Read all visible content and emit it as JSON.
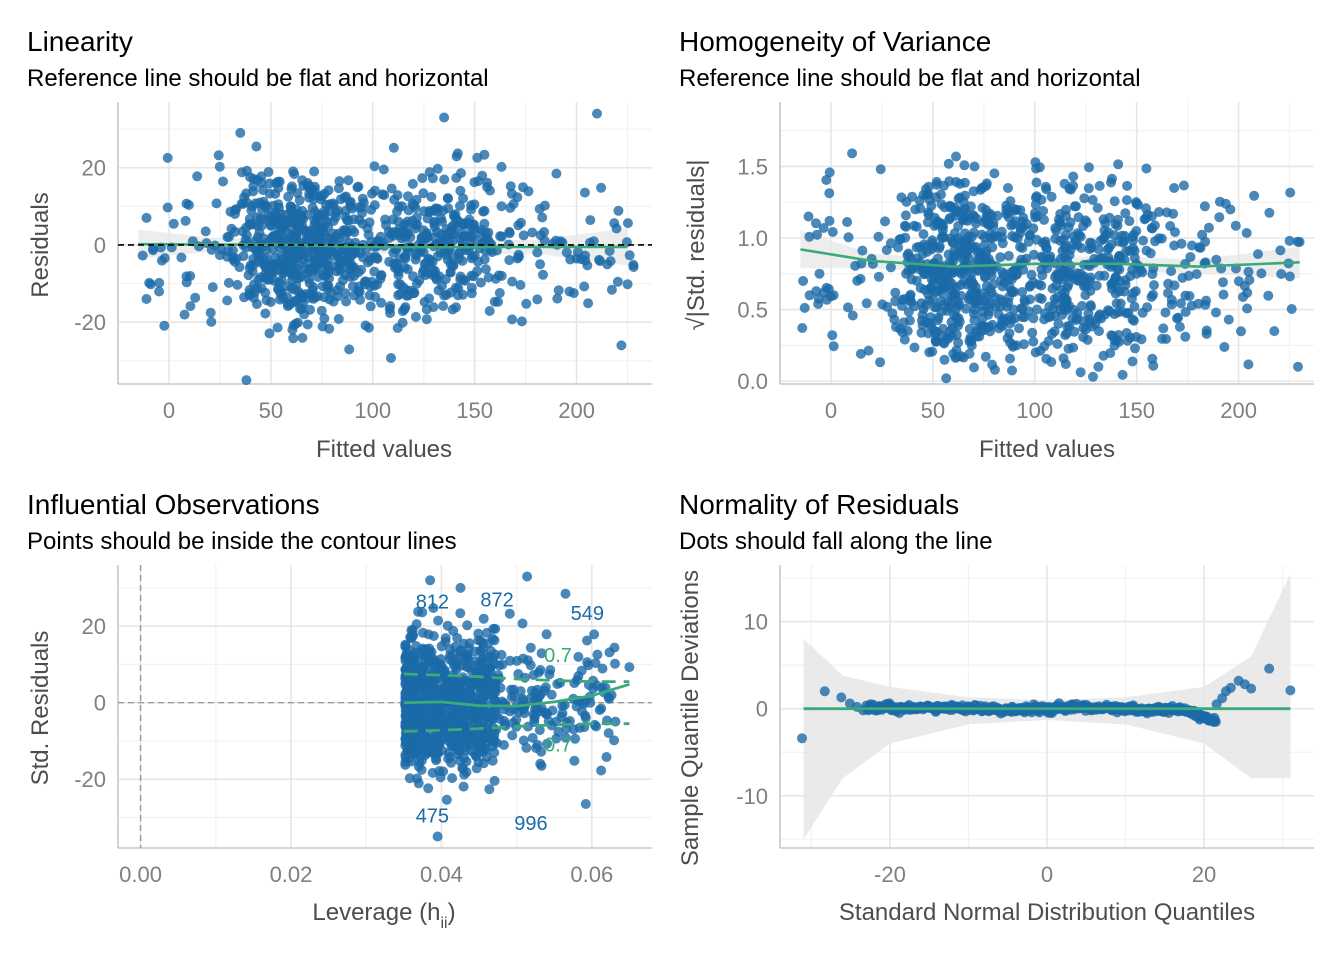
{
  "colors": {
    "points": "#1b6aa8",
    "smooth": "#3aaa7a",
    "grid_major": "#e6e6e6",
    "grid_minor": "#f2f2f2",
    "ribbon": "#e6e6e6",
    "axis_text": "#7f7f7f",
    "axis_title": "#4d4d4d",
    "contour_text": "#3aaa7a"
  },
  "chart_data": [
    {
      "type": "scatter",
      "title": "Linearity",
      "subtitle": "Reference line should be flat and horizontal",
      "xlabel": "Fitted values",
      "ylabel": "Residuals",
      "xlim": [
        -25,
        237
      ],
      "ylim": [
        -36,
        37
      ],
      "xticks": [
        0,
        50,
        100,
        150,
        200
      ],
      "xtick_labels": [
        "0",
        "50",
        "100",
        "150",
        "200"
      ],
      "yticks": [
        -20,
        0,
        20
      ],
      "ytick_labels": [
        "-20",
        "0",
        "20"
      ],
      "grid": true,
      "reference_line": {
        "y": 0,
        "style": "dashed"
      },
      "smooth": {
        "x": [
          -15,
          20,
          60,
          100,
          140,
          180,
          225
        ],
        "y": [
          0.2,
          0.1,
          0.0,
          -0.5,
          -0.6,
          -0.5,
          -0.5
        ]
      },
      "points": {
        "n": 1000,
        "x_range": [
          -15,
          230
        ],
        "y_sd": 9,
        "extremes": [
          [
            38,
            -35
          ],
          [
            135,
            33
          ],
          [
            210,
            34
          ],
          [
            222,
            -26
          ],
          [
            35,
            29
          ]
        ]
      }
    },
    {
      "type": "scatter",
      "title": "Homogeneity of Variance",
      "subtitle": "Reference line should be flat and horizontal",
      "xlabel": "Fitted values",
      "ylabel": "√|Std. residuals|",
      "xlim": [
        -25,
        237
      ],
      "ylim": [
        -0.02,
        1.95
      ],
      "xticks": [
        0,
        50,
        100,
        150,
        200
      ],
      "xtick_labels": [
        "0",
        "50",
        "100",
        "150",
        "200"
      ],
      "yticks": [
        0.0,
        0.5,
        1.0,
        1.5
      ],
      "ytick_labels": [
        "0.0",
        "0.5",
        "1.0",
        "1.5"
      ],
      "grid": true,
      "smooth": {
        "x": [
          -15,
          20,
          60,
          100,
          140,
          180,
          230
        ],
        "y": [
          0.92,
          0.84,
          0.8,
          0.82,
          0.82,
          0.8,
          0.83
        ]
      },
      "points": {
        "n": 1000,
        "x_range": [
          -15,
          230
        ],
        "y_range": [
          0.02,
          1.9
        ]
      }
    },
    {
      "type": "scatter",
      "title": "Influential Observations",
      "subtitle": "Points should be inside the contour lines",
      "xlabel": "Leverage (h",
      "xlabel_sub": "ii",
      "xlabel_end": ")",
      "ylabel": "Std. Residuals",
      "xlim": [
        -0.003,
        0.068
      ],
      "ylim": [
        -38,
        36
      ],
      "xticks": [
        0.0,
        0.02,
        0.04,
        0.06
      ],
      "xtick_labels": [
        "0.00",
        "0.02",
        "0.04",
        "0.06"
      ],
      "yticks": [
        -20,
        0,
        20
      ],
      "ytick_labels": [
        "-20",
        "0",
        "20"
      ],
      "grid": true,
      "reference_lines": [
        {
          "x": 0,
          "style": "dashed"
        },
        {
          "y": 0,
          "style": "dashed"
        }
      ],
      "smooth": {
        "x": [
          0.035,
          0.04,
          0.045,
          0.05,
          0.055,
          0.06,
          0.065
        ],
        "y": [
          0.0,
          0.2,
          -0.8,
          -0.9,
          0.2,
          1.8,
          4.8
        ]
      },
      "contour": {
        "x": [
          0.035,
          0.04,
          0.045,
          0.05,
          0.055,
          0.06,
          0.065
        ],
        "upper": [
          7.5,
          7.2,
          6.8,
          6.2,
          5.8,
          5.5,
          5.5
        ],
        "lower": [
          -7.5,
          -7.2,
          -6.8,
          -6.2,
          -5.8,
          -5.5,
          -5.5
        ]
      },
      "contour_labels": [
        {
          "text": "0.7",
          "x": 0.0555,
          "y": 12.5
        },
        {
          "text": "0.7",
          "x": 0.0555,
          "y": -11
        }
      ],
      "point_labels": [
        {
          "text": "812",
          "x": 0.0388,
          "y": 26.5
        },
        {
          "text": "872",
          "x": 0.0474,
          "y": 27
        },
        {
          "text": "549",
          "x": 0.0594,
          "y": 23.5
        },
        {
          "text": "475",
          "x": 0.0388,
          "y": -29.5
        },
        {
          "text": "996",
          "x": 0.0519,
          "y": -31.5
        }
      ],
      "points": {
        "n": 1000,
        "x_range": [
          0.034,
          0.065
        ],
        "y_sd": 9
      }
    },
    {
      "type": "scatter",
      "title": "Normality of Residuals",
      "subtitle": "Dots should fall along the line",
      "xlabel": "Standard Normal Distribution Quantiles",
      "ylabel": "Sample Quantile Deviations",
      "xlim": [
        -34,
        34
      ],
      "ylim": [
        -16,
        16.5
      ],
      "xticks": [
        -20,
        0,
        20
      ],
      "xtick_labels": [
        "-20",
        "0",
        "20"
      ],
      "yticks": [
        -10,
        0,
        10
      ],
      "ytick_labels": [
        "-10",
        "0",
        "10"
      ],
      "grid": true,
      "reference_line": {
        "y": 0
      },
      "band": {
        "x": [
          -31,
          -26,
          -20,
          -10,
          0,
          10,
          20,
          26,
          31
        ],
        "lower": [
          -15,
          -8,
          -4,
          -1.8,
          -1.3,
          -1.8,
          -4,
          -8,
          -8
        ],
        "upper": [
          8,
          3.8,
          2.5,
          1.3,
          1.0,
          1.3,
          2.5,
          6,
          15.5
        ]
      },
      "points": {
        "tail_points": [
          [
            -31.2,
            -3.4
          ],
          [
            -28.3,
            2.0
          ],
          [
            -26.2,
            1.3
          ],
          [
            -25.1,
            0.6
          ],
          [
            -24.2,
            0.2
          ],
          [
            -23.4,
            -0.2
          ],
          [
            21.6,
            0.5
          ],
          [
            22.3,
            1.2
          ],
          [
            22.8,
            2.0
          ],
          [
            23.4,
            2.4
          ],
          [
            24.4,
            3.2
          ],
          [
            25.2,
            2.8
          ],
          [
            26.0,
            2.3
          ],
          [
            28.3,
            4.6
          ],
          [
            31.0,
            2.1
          ]
        ]
      }
    }
  ]
}
